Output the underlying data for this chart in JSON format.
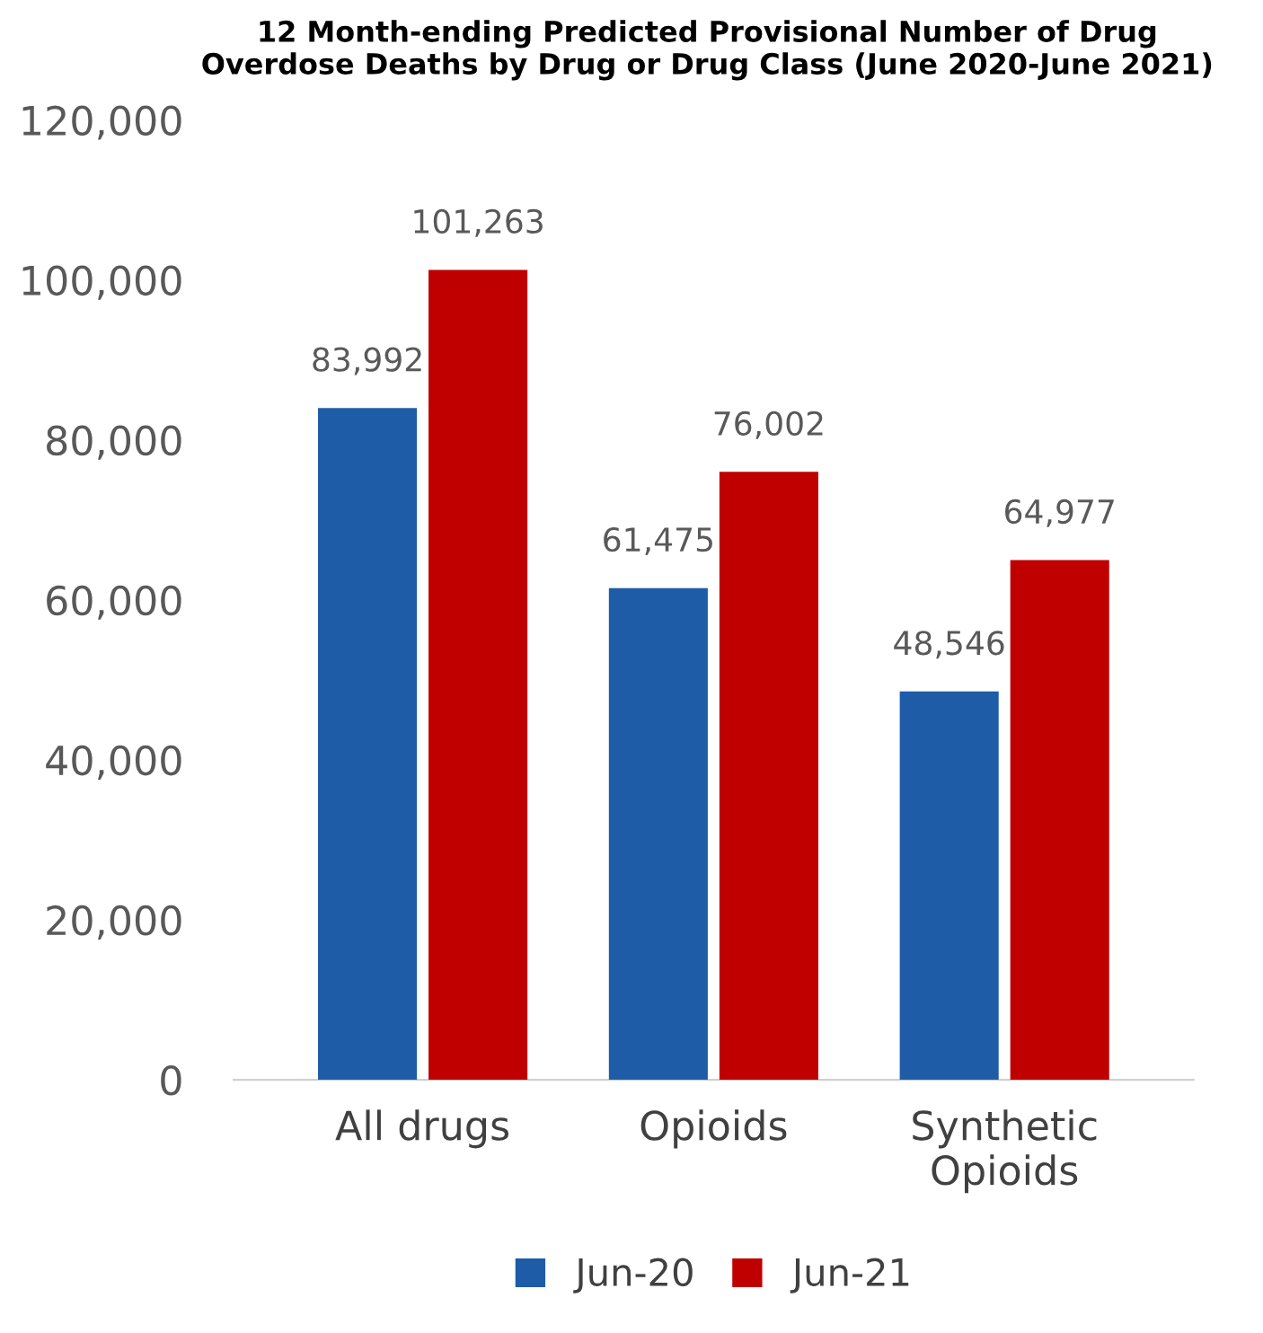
{
  "chart_data": {
    "type": "bar",
    "title": "12 Month-ending Predicted Provisional Number of Drug\nOverdose Deaths by Drug or Drug Class (June 2020-June 2021)",
    "categories": [
      "All drugs",
      "Opioids",
      "Synthetic Opioids"
    ],
    "series": [
      {
        "name": "Jun-20",
        "color": "#1f5ca8",
        "values": [
          83992,
          61475,
          48546
        ],
        "value_labels": [
          "83,992",
          "61,475",
          "48,546"
        ]
      },
      {
        "name": "Jun-21",
        "color": "#c00000",
        "values": [
          101263,
          76002,
          64977
        ],
        "value_labels": [
          "101,263",
          "76,002",
          "64,977"
        ]
      }
    ],
    "ylim": [
      0,
      120000
    ],
    "yticks": [
      0,
      {
        "value": 20000,
        "label": "20,000"
      },
      {
        "value": 40000,
        "label": "40,000"
      },
      {
        "value": 60000,
        "label": "60,000"
      },
      {
        "value": 80000,
        "label": "80,000"
      },
      {
        "value": 100000,
        "label": "100,000"
      },
      {
        "value": 120000,
        "label": "120,000"
      }
    ],
    "grid": false,
    "legend": "bottom"
  }
}
